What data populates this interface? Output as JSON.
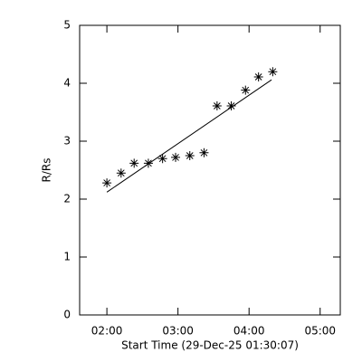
{
  "chart_data": {
    "type": "scatter",
    "xlabel": "Start Time (29-Dec-25 01:30:07)",
    "ylabel": "R/Rs",
    "x": [
      120,
      132,
      143,
      155,
      167,
      178,
      190,
      202,
      213,
      225,
      237,
      248,
      260
    ],
    "values": [
      2.28,
      2.45,
      2.62,
      2.62,
      2.7,
      2.72,
      2.75,
      2.8,
      3.61,
      3.61,
      3.88,
      4.11,
      4.2
    ],
    "fit_line": {
      "x": [
        120,
        259
      ],
      "values": [
        2.12,
        4.06
      ]
    },
    "color": "#000000",
    "xlim": [
      97,
      317
    ],
    "xticks": [
      {
        "value": 120,
        "label": "02:00"
      },
      {
        "value": 180,
        "label": "03:00"
      },
      {
        "value": 240,
        "label": "04:00"
      },
      {
        "value": 300,
        "label": "05:00"
      }
    ],
    "ylim": [
      0,
      5
    ],
    "yticks": [
      0,
      1,
      2,
      3,
      4,
      5
    ]
  }
}
